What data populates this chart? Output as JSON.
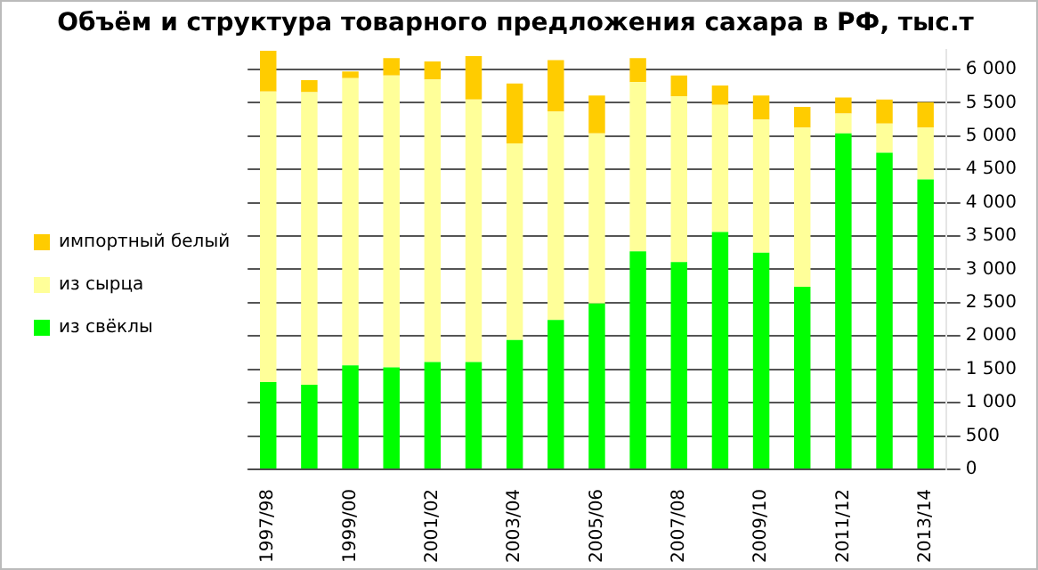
{
  "chart_data": {
    "type": "bar",
    "title": "Объём и структура товарного предложения сахара в РФ, тыс.т",
    "stacked": true,
    "categories": [
      "1997/98",
      null,
      "1999/00",
      null,
      "2001/02",
      null,
      "2003/04",
      null,
      "2005/06",
      null,
      "2007/08",
      null,
      "2009/10",
      null,
      "2011/12",
      null,
      "2013/14"
    ],
    "series": [
      {
        "name": "из свёклы",
        "color": "#00ff00",
        "values": [
          1310,
          1270,
          1560,
          1530,
          1610,
          1610,
          1940,
          2240,
          2490,
          3270,
          3110,
          3560,
          3250,
          2740,
          5040,
          4750,
          4350
        ]
      },
      {
        "name": "из сырца",
        "color": "#ffff99",
        "values": [
          4360,
          4390,
          4310,
          4380,
          4240,
          3940,
          2950,
          3130,
          2550,
          2540,
          2490,
          1910,
          2000,
          2390,
          300,
          440,
          780
        ]
      },
      {
        "name": "импортный белый",
        "color": "#ffcc00",
        "values": [
          610,
          180,
          100,
          260,
          270,
          650,
          900,
          770,
          570,
          360,
          310,
          290,
          360,
          310,
          240,
          360,
          380
        ]
      }
    ],
    "ylim": [
      0,
      6300
    ],
    "yticks": [
      0,
      500,
      {
        "value": 1000,
        "label": "1 000"
      },
      {
        "value": 1500,
        "label": "1 500"
      },
      {
        "value": 2000,
        "label": "2 000"
      },
      {
        "value": 2500,
        "label": "2 500"
      },
      {
        "value": 3000,
        "label": "3 000"
      },
      {
        "value": 3500,
        "label": "3 500"
      },
      {
        "value": 4000,
        "label": "4 000"
      },
      {
        "value": 4500,
        "label": "4 500"
      },
      {
        "value": 5000,
        "label": "5 000"
      },
      {
        "value": 5500,
        "label": "5 500"
      },
      {
        "value": 6000,
        "label": "6 000"
      }
    ],
    "grid": "y",
    "legend": "left"
  }
}
